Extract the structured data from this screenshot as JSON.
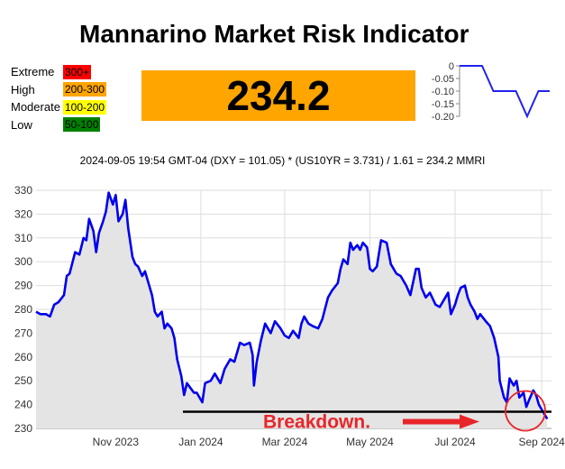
{
  "title": "Mannarino Market Risk Indicator",
  "legend": [
    {
      "label": "Extreme",
      "range": "300+",
      "color": "#FF0000"
    },
    {
      "label": "High",
      "range": "200-300",
      "color": "#FFA500"
    },
    {
      "label": "Moderate",
      "range": "100-200",
      "color": "#FFFF00"
    },
    {
      "label": "Low",
      "range": "50-100",
      "color": "#008000"
    }
  ],
  "current_value": "234.2",
  "formula": "2024-09-05 19:54 GMT-04 (DXY = 101.05) * (US10YR = 3.731) / 1.61 = 234.2 MMRI",
  "annotation": {
    "text": "Breakdown.",
    "color": "#E8262A"
  },
  "chart_data": [
    {
      "type": "line",
      "name": "mini-change",
      "ylim": [
        -0.2,
        0
      ],
      "yticks": [
        "0",
        "-0.05",
        "-0.10",
        "-0.15",
        "-0.20"
      ],
      "ytick_values": [
        0,
        -0.05,
        -0.1,
        -0.15,
        -0.2
      ],
      "x": [
        0,
        1,
        2,
        3,
        4,
        5,
        6,
        7,
        8
      ],
      "y": [
        0,
        0,
        0,
        -0.1,
        -0.1,
        -0.1,
        -0.2,
        -0.1,
        -0.1
      ],
      "color": "#2222EE",
      "grid": false
    },
    {
      "type": "area",
      "name": "mmri-history",
      "xticks": [
        "Nov 2023",
        "Jan 2024",
        "Mar 2024",
        "May 2024",
        "Jul 2024",
        "Sep 2024"
      ],
      "xtick_dates": [
        "2023-11-01",
        "2024-01-01",
        "2024-03-01",
        "2024-05-01",
        "2024-07-01",
        "2024-09-01"
      ],
      "xlim": [
        "2023-09-05",
        "2024-09-08"
      ],
      "yticks": [
        230,
        240,
        250,
        260,
        270,
        280,
        290,
        300,
        310,
        320,
        330
      ],
      "ylim": [
        230,
        330
      ],
      "grid": true,
      "line_color": "#0000EE",
      "fill_color": "#E4E4E4",
      "support_level": 237,
      "points": [
        [
          "2023-09-05",
          279
        ],
        [
          "2023-09-08",
          278
        ],
        [
          "2023-09-12",
          278
        ],
        [
          "2023-09-15",
          277
        ],
        [
          "2023-09-18",
          282
        ],
        [
          "2023-09-21",
          283
        ],
        [
          "2023-09-25",
          286
        ],
        [
          "2023-09-27",
          294
        ],
        [
          "2023-09-29",
          295
        ],
        [
          "2023-10-03",
          304
        ],
        [
          "2023-10-06",
          303
        ],
        [
          "2023-10-09",
          310
        ],
        [
          "2023-10-11",
          309
        ],
        [
          "2023-10-13",
          318
        ],
        [
          "2023-10-16",
          313
        ],
        [
          "2023-10-18",
          304
        ],
        [
          "2023-10-20",
          312
        ],
        [
          "2023-10-23",
          317
        ],
        [
          "2023-10-25",
          321
        ],
        [
          "2023-10-27",
          329
        ],
        [
          "2023-10-30",
          324
        ],
        [
          "2023-11-01",
          328
        ],
        [
          "2023-11-03",
          317
        ],
        [
          "2023-11-06",
          320
        ],
        [
          "2023-11-08",
          326
        ],
        [
          "2023-11-10",
          314
        ],
        [
          "2023-11-13",
          302
        ],
        [
          "2023-11-15",
          299
        ],
        [
          "2023-11-17",
          298
        ],
        [
          "2023-11-20",
          294
        ],
        [
          "2023-11-22",
          296
        ],
        [
          "2023-11-24",
          292
        ],
        [
          "2023-11-27",
          286
        ],
        [
          "2023-11-29",
          279
        ],
        [
          "2023-12-01",
          277
        ],
        [
          "2023-12-04",
          279
        ],
        [
          "2023-12-06",
          272
        ],
        [
          "2023-12-08",
          274
        ],
        [
          "2023-12-11",
          272
        ],
        [
          "2023-12-13",
          268
        ],
        [
          "2023-12-15",
          259
        ],
        [
          "2023-12-18",
          252
        ],
        [
          "2023-12-20",
          244
        ],
        [
          "2023-12-22",
          249
        ],
        [
          "2023-12-27",
          245
        ],
        [
          "2023-12-29",
          245
        ],
        [
          "2024-01-02",
          241
        ],
        [
          "2024-01-04",
          249
        ],
        [
          "2024-01-08",
          250
        ],
        [
          "2024-01-11",
          253
        ],
        [
          "2024-01-15",
          249
        ],
        [
          "2024-01-18",
          255
        ],
        [
          "2024-01-22",
          259
        ],
        [
          "2024-01-25",
          258
        ],
        [
          "2024-01-29",
          266
        ],
        [
          "2024-02-01",
          265
        ],
        [
          "2024-02-05",
          266
        ],
        [
          "2024-02-07",
          261
        ],
        [
          "2024-02-08",
          248
        ],
        [
          "2024-02-10",
          258
        ],
        [
          "2024-02-13",
          267
        ],
        [
          "2024-02-16",
          274
        ],
        [
          "2024-02-20",
          270
        ],
        [
          "2024-02-23",
          275
        ],
        [
          "2024-02-27",
          272
        ],
        [
          "2024-03-01",
          269
        ],
        [
          "2024-03-04",
          268
        ],
        [
          "2024-03-07",
          271
        ],
        [
          "2024-03-11",
          268
        ],
        [
          "2024-03-13",
          274
        ],
        [
          "2024-03-15",
          277
        ],
        [
          "2024-03-18",
          274
        ],
        [
          "2024-03-21",
          273
        ],
        [
          "2024-03-25",
          272
        ],
        [
          "2024-03-28",
          276
        ],
        [
          "2024-04-01",
          285
        ],
        [
          "2024-04-04",
          288
        ],
        [
          "2024-04-08",
          291
        ],
        [
          "2024-04-10",
          297
        ],
        [
          "2024-04-12",
          301
        ],
        [
          "2024-04-15",
          299
        ],
        [
          "2024-04-17",
          308
        ],
        [
          "2024-04-19",
          305
        ],
        [
          "2024-04-22",
          307
        ],
        [
          "2024-04-24",
          305
        ],
        [
          "2024-04-26",
          308
        ],
        [
          "2024-04-29",
          306
        ],
        [
          "2024-05-01",
          297
        ],
        [
          "2024-05-03",
          296
        ],
        [
          "2024-05-06",
          298
        ],
        [
          "2024-05-09",
          309
        ],
        [
          "2024-05-13",
          308
        ],
        [
          "2024-05-16",
          299
        ],
        [
          "2024-05-20",
          295
        ],
        [
          "2024-05-23",
          294
        ],
        [
          "2024-05-27",
          290
        ],
        [
          "2024-05-30",
          286
        ],
        [
          "2024-06-03",
          297
        ],
        [
          "2024-06-05",
          297
        ],
        [
          "2024-06-07",
          289
        ],
        [
          "2024-06-10",
          285
        ],
        [
          "2024-06-13",
          287
        ],
        [
          "2024-06-17",
          282
        ],
        [
          "2024-06-20",
          281
        ],
        [
          "2024-06-24",
          285
        ],
        [
          "2024-06-26",
          287
        ],
        [
          "2024-06-28",
          278
        ],
        [
          "2024-07-01",
          282
        ],
        [
          "2024-07-03",
          286
        ],
        [
          "2024-07-05",
          289
        ],
        [
          "2024-07-08",
          290
        ],
        [
          "2024-07-10",
          285
        ],
        [
          "2024-07-12",
          282
        ],
        [
          "2024-07-15",
          279
        ],
        [
          "2024-07-17",
          276
        ],
        [
          "2024-07-19",
          278
        ],
        [
          "2024-07-23",
          275
        ],
        [
          "2024-07-26",
          273
        ],
        [
          "2024-07-29",
          268
        ],
        [
          "2024-08-01",
          260
        ],
        [
          "2024-08-02",
          250
        ],
        [
          "2024-08-05",
          243
        ],
        [
          "2024-08-07",
          241
        ],
        [
          "2024-08-09",
          251
        ],
        [
          "2024-08-12",
          248
        ],
        [
          "2024-08-14",
          250
        ],
        [
          "2024-08-16",
          243
        ],
        [
          "2024-08-19",
          245
        ],
        [
          "2024-08-21",
          239
        ],
        [
          "2024-08-23",
          242
        ],
        [
          "2024-08-26",
          246
        ],
        [
          "2024-08-28",
          244
        ],
        [
          "2024-08-30",
          240
        ],
        [
          "2024-09-03",
          236
        ],
        [
          "2024-09-05",
          234
        ]
      ]
    }
  ]
}
